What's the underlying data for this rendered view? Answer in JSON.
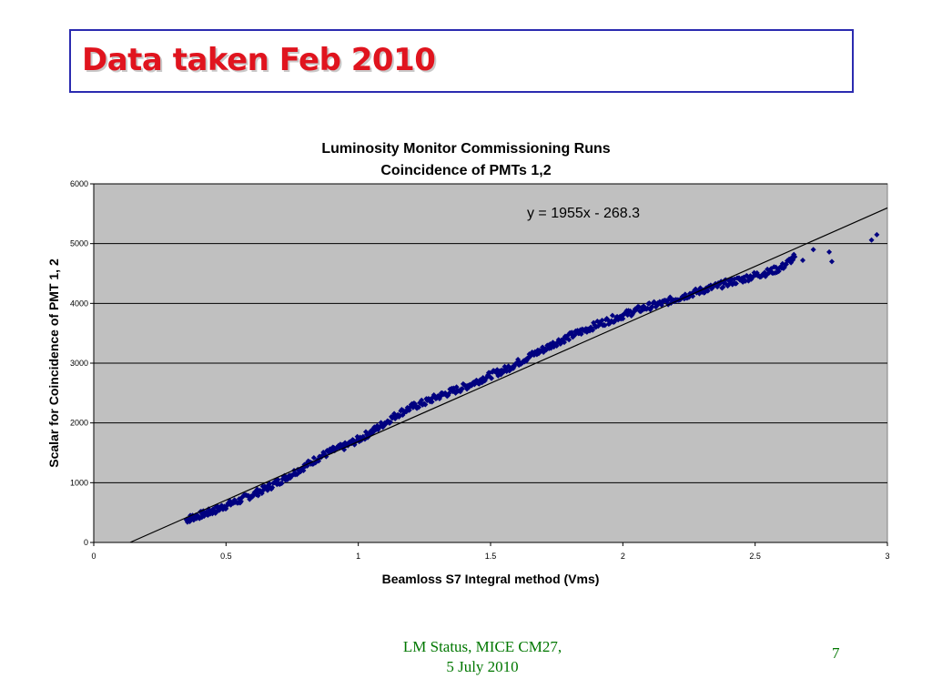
{
  "slide": {
    "title": "Data taken Feb 2010",
    "footer_line1": "LM Status, MICE CM27,",
    "footer_line2": "5 July 2010",
    "page_number": "7"
  },
  "colors": {
    "title": "#e0141e",
    "title_border": "#2b2bb0",
    "plot_background": "#c0c0c0",
    "points": "#000080",
    "trendline": "#000000",
    "footer": "#007700"
  },
  "chart_data": {
    "type": "scatter",
    "title": "Luminosity Monitor Commissioning Runs",
    "subtitle": "Coincidence of PMTs 1,2",
    "xlabel": "Beamloss S7 Integral method (Vms)",
    "ylabel": "Scalar for Coincidence of PMT 1, 2",
    "xlim": [
      0,
      3
    ],
    "ylim": [
      0,
      6000
    ],
    "x_ticks": [
      0,
      0.5,
      1,
      1.5,
      2,
      2.5,
      3
    ],
    "x_tick_labels": [
      "0",
      "0.5",
      "1",
      "1.5",
      "2",
      "2.5",
      "3"
    ],
    "y_ticks": [
      0,
      1000,
      2000,
      3000,
      4000,
      5000,
      6000
    ],
    "y_tick_labels": [
      "0",
      "1000",
      "2000",
      "3000",
      "4000",
      "5000",
      "6000"
    ],
    "grid": "horizontal",
    "trendline": {
      "slope": 1955,
      "intercept": -268.3,
      "label": "y = 1955x - 268.3"
    },
    "series": [
      {
        "marker": "diamond",
        "points": [
          [
            0.35,
            380
          ],
          [
            0.38,
            430
          ],
          [
            0.42,
            480
          ],
          [
            0.46,
            540
          ],
          [
            0.5,
            620
          ],
          [
            0.55,
            700
          ],
          [
            0.6,
            800
          ],
          [
            0.65,
            900
          ],
          [
            0.7,
            1020
          ],
          [
            0.75,
            1150
          ],
          [
            0.8,
            1280
          ],
          [
            0.85,
            1420
          ],
          [
            0.9,
            1530
          ],
          [
            0.95,
            1610
          ],
          [
            1.0,
            1720
          ],
          [
            1.05,
            1850
          ],
          [
            1.1,
            2000
          ],
          [
            1.15,
            2150
          ],
          [
            1.2,
            2260
          ],
          [
            1.25,
            2340
          ],
          [
            1.3,
            2440
          ],
          [
            1.35,
            2520
          ],
          [
            1.4,
            2600
          ],
          [
            1.45,
            2700
          ],
          [
            1.5,
            2800
          ],
          [
            1.55,
            2880
          ],
          [
            1.6,
            3000
          ],
          [
            1.65,
            3120
          ],
          [
            1.7,
            3230
          ],
          [
            1.75,
            3350
          ],
          [
            1.8,
            3450
          ],
          [
            1.85,
            3540
          ],
          [
            1.9,
            3640
          ],
          [
            1.95,
            3720
          ],
          [
            2.0,
            3800
          ],
          [
            2.05,
            3880
          ],
          [
            2.1,
            3950
          ],
          [
            2.15,
            4000
          ],
          [
            2.2,
            4080
          ],
          [
            2.25,
            4150
          ],
          [
            2.3,
            4220
          ],
          [
            2.35,
            4280
          ],
          [
            2.4,
            4350
          ],
          [
            2.45,
            4400
          ],
          [
            2.5,
            4470
          ],
          [
            2.55,
            4520
          ],
          [
            2.6,
            4600
          ],
          [
            2.65,
            4780
          ],
          [
            2.68,
            4720
          ],
          [
            2.72,
            4900
          ],
          [
            2.78,
            4860
          ],
          [
            2.79,
            4700
          ],
          [
            2.94,
            5060
          ],
          [
            2.96,
            5150
          ]
        ]
      }
    ]
  }
}
